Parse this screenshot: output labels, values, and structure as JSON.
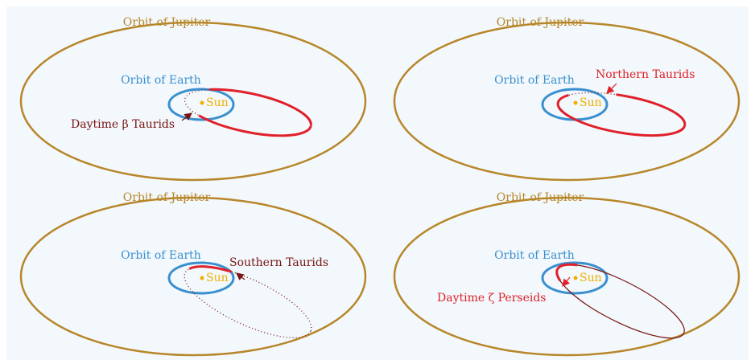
{
  "panels": [
    {
      "jupiter_label": "Orbit of Jupiter",
      "earth_label": "Orbit of Earth",
      "sun_label": "Sun",
      "stream_label": "Daytime β Taurids"
    },
    {
      "jupiter_label": "Orbit of Jupiter",
      "earth_label": "Orbit of Earth",
      "sun_label": "Sun",
      "stream_label": "Northern Taurids"
    },
    {
      "jupiter_label": "Orbit of Jupiter",
      "earth_label": "Orbit of Earth",
      "sun_label": "Sun",
      "stream_label": "Southern Taurids"
    },
    {
      "jupiter_label": "Orbit of Jupiter",
      "earth_label": "Orbit of Earth",
      "sun_label": "Sun",
      "stream_label": "Daytime ζ Perseids"
    }
  ]
}
